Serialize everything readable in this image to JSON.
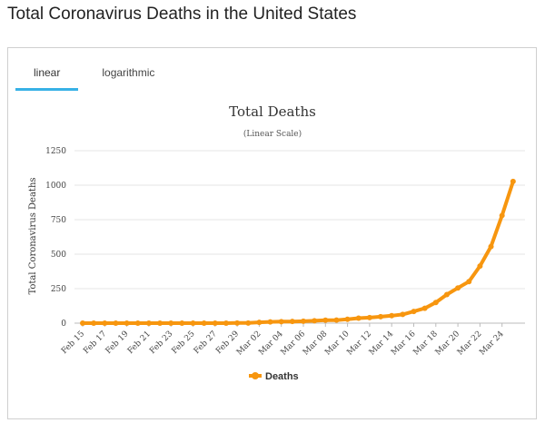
{
  "page": {
    "title": "Total Coronavirus Deaths in the United States"
  },
  "tabs": [
    {
      "label": "linear",
      "active": true
    },
    {
      "label": "logarithmic",
      "active": false
    }
  ],
  "colors": {
    "series": "#f7960f",
    "tab_active": "#38b1e6",
    "grid": "#e6e6e6"
  },
  "chart_data": {
    "type": "line",
    "title": "Total Deaths",
    "subtitle": "(Linear Scale)",
    "xlabel": "",
    "ylabel": "Total Coronavirus Deaths",
    "ylim": [
      0,
      1250
    ],
    "yticks": [
      0,
      250,
      500,
      750,
      1000,
      1250
    ],
    "grid": true,
    "legend": "bottom",
    "x": [
      "Feb 15",
      "Feb 16",
      "Feb 17",
      "Feb 18",
      "Feb 19",
      "Feb 20",
      "Feb 21",
      "Feb 22",
      "Feb 23",
      "Feb 24",
      "Feb 25",
      "Feb 26",
      "Feb 27",
      "Feb 28",
      "Feb 29",
      "Mar 01",
      "Mar 02",
      "Mar 03",
      "Mar 04",
      "Mar 05",
      "Mar 06",
      "Mar 07",
      "Mar 08",
      "Mar 09",
      "Mar 10",
      "Mar 11",
      "Mar 12",
      "Mar 13",
      "Mar 14",
      "Mar 15",
      "Mar 16",
      "Mar 17",
      "Mar 18",
      "Mar 19",
      "Mar 20",
      "Mar 21",
      "Mar 22",
      "Mar 23",
      "Mar 24",
      "Mar 25"
    ],
    "x_tick_labels": [
      "Feb 15",
      "Feb 17",
      "Feb 19",
      "Feb 21",
      "Feb 23",
      "Feb 25",
      "Feb 27",
      "Feb 29",
      "Mar 02",
      "Mar 04",
      "Mar 06",
      "Mar 08",
      "Mar 10",
      "Mar 12",
      "Mar 14",
      "Mar 16",
      "Mar 18",
      "Mar 20",
      "Mar 22",
      "Mar 24"
    ],
    "series": [
      {
        "name": "Deaths",
        "values": [
          0,
          0,
          0,
          0,
          0,
          0,
          0,
          0,
          0,
          0,
          0,
          0,
          0,
          0,
          1,
          1,
          6,
          9,
          11,
          12,
          14,
          17,
          21,
          22,
          28,
          36,
          40,
          47,
          54,
          63,
          85,
          108,
          150,
          207,
          255,
          301,
          414,
          555,
          780,
          1027
        ]
      }
    ]
  }
}
